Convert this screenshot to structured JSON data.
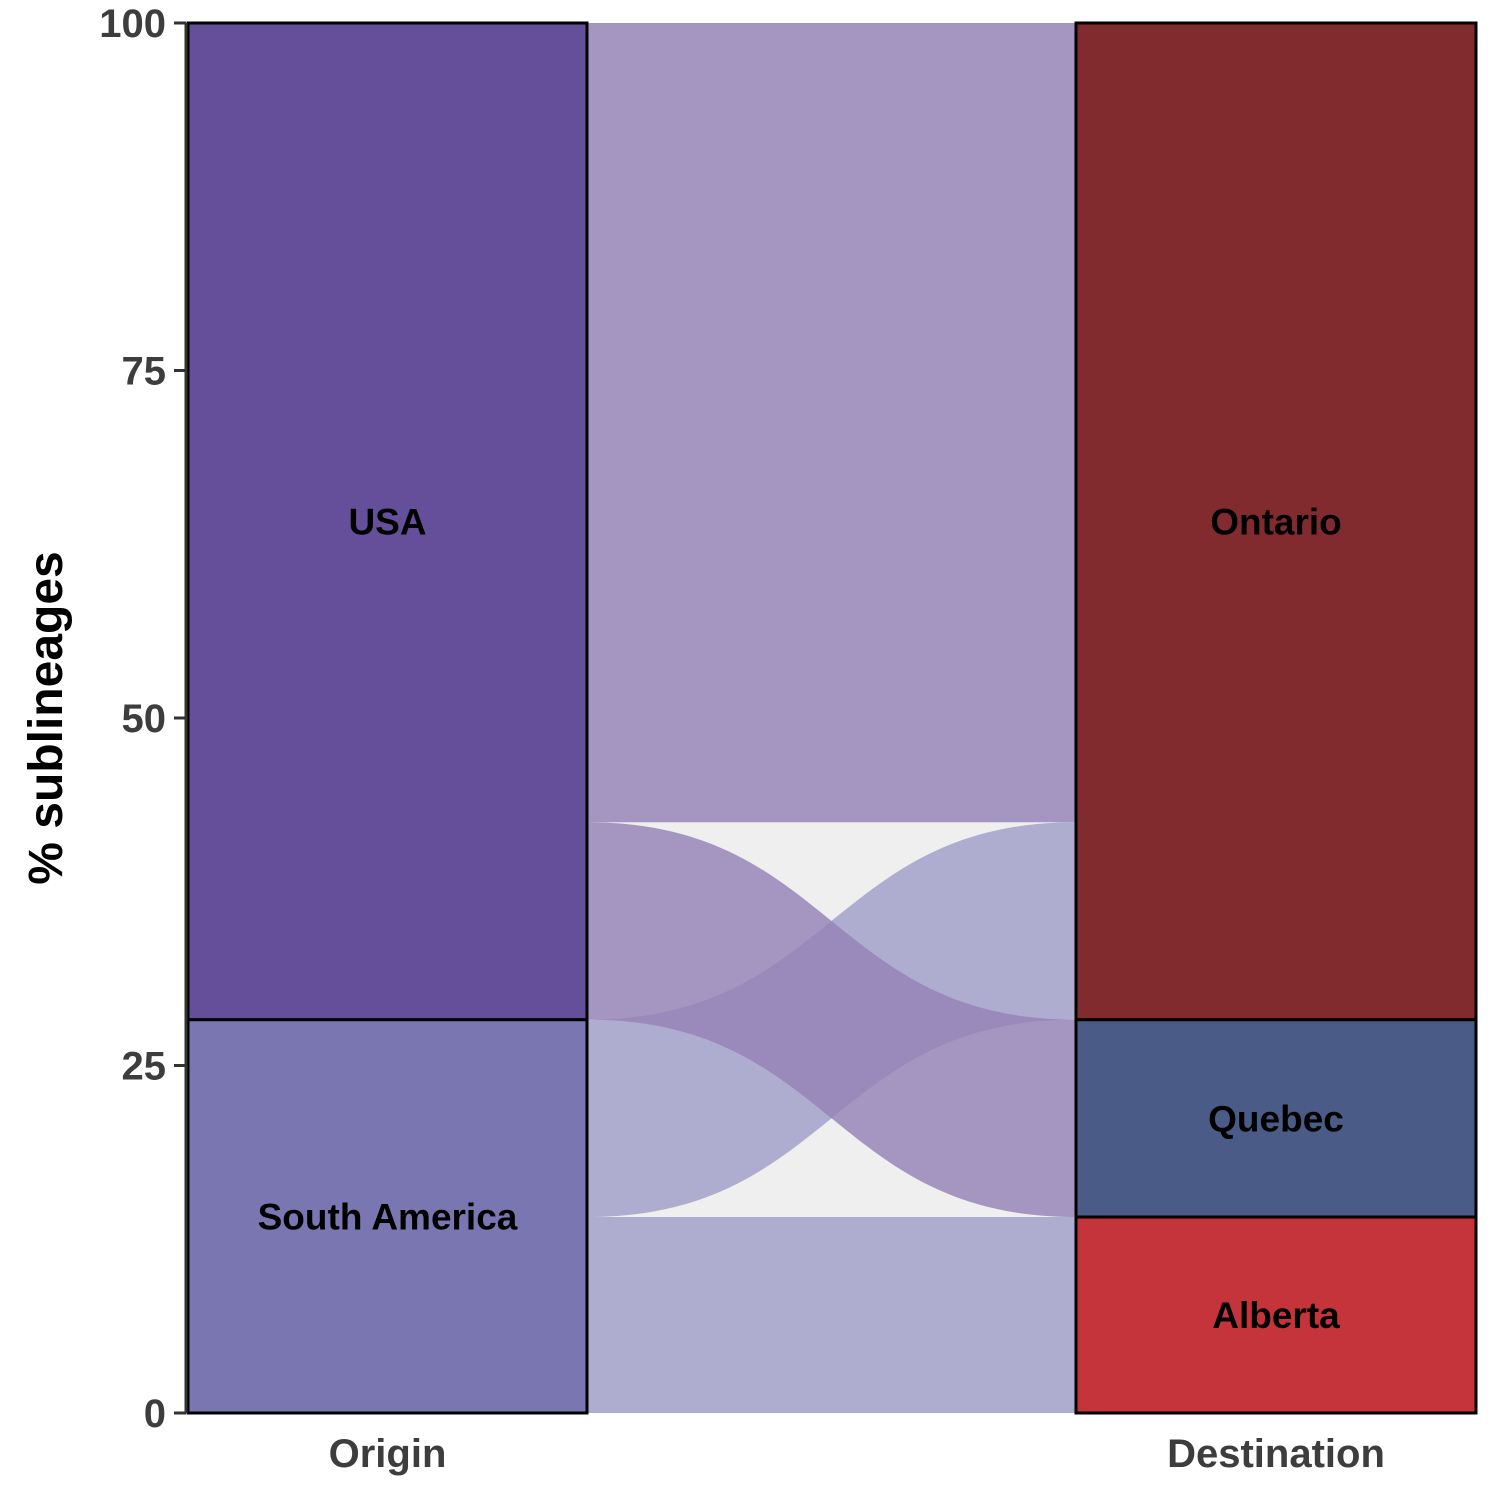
{
  "chart_data": {
    "type": "alluvial",
    "ylabel": "% sublineages",
    "ylim": [
      0,
      100
    ],
    "yticks": [
      0,
      25,
      50,
      75,
      100
    ],
    "axes": [
      "Origin",
      "Destination"
    ],
    "strata": {
      "Origin": [
        {
          "label": "South America",
          "value": 28.3,
          "color": "#7a76b2"
        },
        {
          "label": "USA",
          "value": 71.7,
          "color": "#654f9b"
        }
      ],
      "Destination": [
        {
          "label": "Alberta",
          "value": 14.1,
          "color": "#c5333b"
        },
        {
          "label": "Quebec",
          "value": 14.2,
          "color": "#4a5b87"
        },
        {
          "label": "Ontario",
          "value": 71.7,
          "color": "#822b2f"
        }
      ]
    },
    "flows": [
      {
        "from": "South America",
        "to": "Alberta",
        "value": 14.1,
        "color": "#a19fc8"
      },
      {
        "from": "South America",
        "to": "Ontario",
        "value": 14.2,
        "color": "#a19fc8"
      },
      {
        "from": "USA",
        "to": "Quebec",
        "value": 14.2,
        "color": "#9583b7"
      },
      {
        "from": "USA",
        "to": "Ontario",
        "value": 57.5,
        "color": "#9583b7"
      }
    ],
    "flow_background": "#efefef",
    "grid": false
  }
}
